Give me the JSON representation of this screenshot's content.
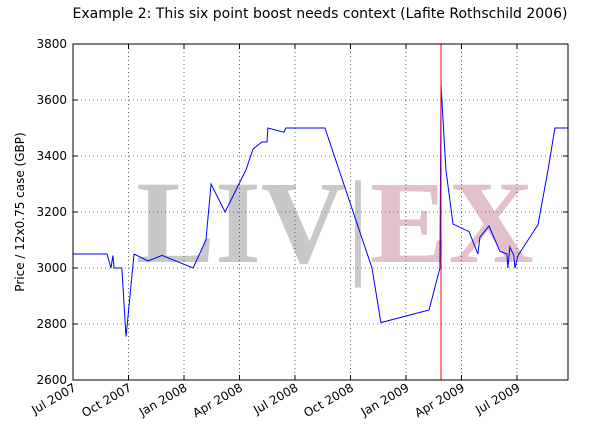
{
  "chart_data": {
    "type": "line",
    "title": "Example 2: This six point boost needs context (Lafite Rothschild 2006)",
    "y_label": "Price  / 12x0.75 case (GBP)",
    "watermark": [
      "LIV",
      "|",
      "EX"
    ],
    "watermark_colors": [
      "#c8c8c8",
      "#c8c8c8",
      "#e2c1ca"
    ],
    "x": [
      2007.5,
      2007.653,
      2007.671,
      2007.68,
      2007.685,
      2007.72,
      2007.739,
      2007.775,
      2007.838,
      2007.901,
      2008.041,
      2008.099,
      2008.122,
      2008.185,
      2008.279,
      2008.311,
      2008.351,
      2008.374,
      2008.378,
      2008.45,
      2008.459,
      2008.635,
      2008.847,
      2008.887,
      2009.104,
      2009.153,
      2009.158,
      2009.18,
      2009.212,
      2009.284,
      2009.324,
      2009.333,
      2009.374,
      2009.423,
      2009.455,
      2009.459,
      2009.468,
      2009.486,
      2009.491,
      2009.505,
      2009.595,
      2009.64,
      2009.671,
      2009.73
    ],
    "series": [
      {
        "name": "Price",
        "color": "#0000ff",
        "values": [
          3050,
          3050,
          3000,
          3045,
          3000,
          3000,
          2755,
          3050,
          3025,
          3045,
          3000,
          3100,
          3300,
          3200,
          3350,
          3425,
          3450,
          3450,
          3500,
          3485,
          3500,
          3500,
          3000,
          2805,
          2850,
          3000,
          3655,
          3350,
          3157,
          3130,
          3050,
          3110,
          3150,
          3060,
          3050,
          3000,
          3075,
          3045,
          3000,
          3045,
          3155,
          3350,
          3500,
          3500
        ]
      }
    ],
    "vline": {
      "x": 2009.158,
      "color": "#ff0000"
    },
    "xlim": [
      2007.5,
      2009.73
    ],
    "xticks": [
      {
        "value": 2007.5,
        "label": "Jul 2007"
      },
      {
        "value": 2007.75,
        "label": "Oct 2007"
      },
      {
        "value": 2008.0,
        "label": "Jan 2008"
      },
      {
        "value": 2008.25,
        "label": "Apr 2008"
      },
      {
        "value": 2008.5,
        "label": "Jul 2008"
      },
      {
        "value": 2008.75,
        "label": "Oct 2008"
      },
      {
        "value": 2009.0,
        "label": "Jan 2009"
      },
      {
        "value": 2009.25,
        "label": "Apr 2009"
      },
      {
        "value": 2009.5,
        "label": "Jul 2009"
      }
    ],
    "ylim": [
      2600,
      3800
    ],
    "yticks": [
      2600,
      2800,
      3000,
      3200,
      3400,
      3600,
      3800
    ],
    "grid": true
  }
}
